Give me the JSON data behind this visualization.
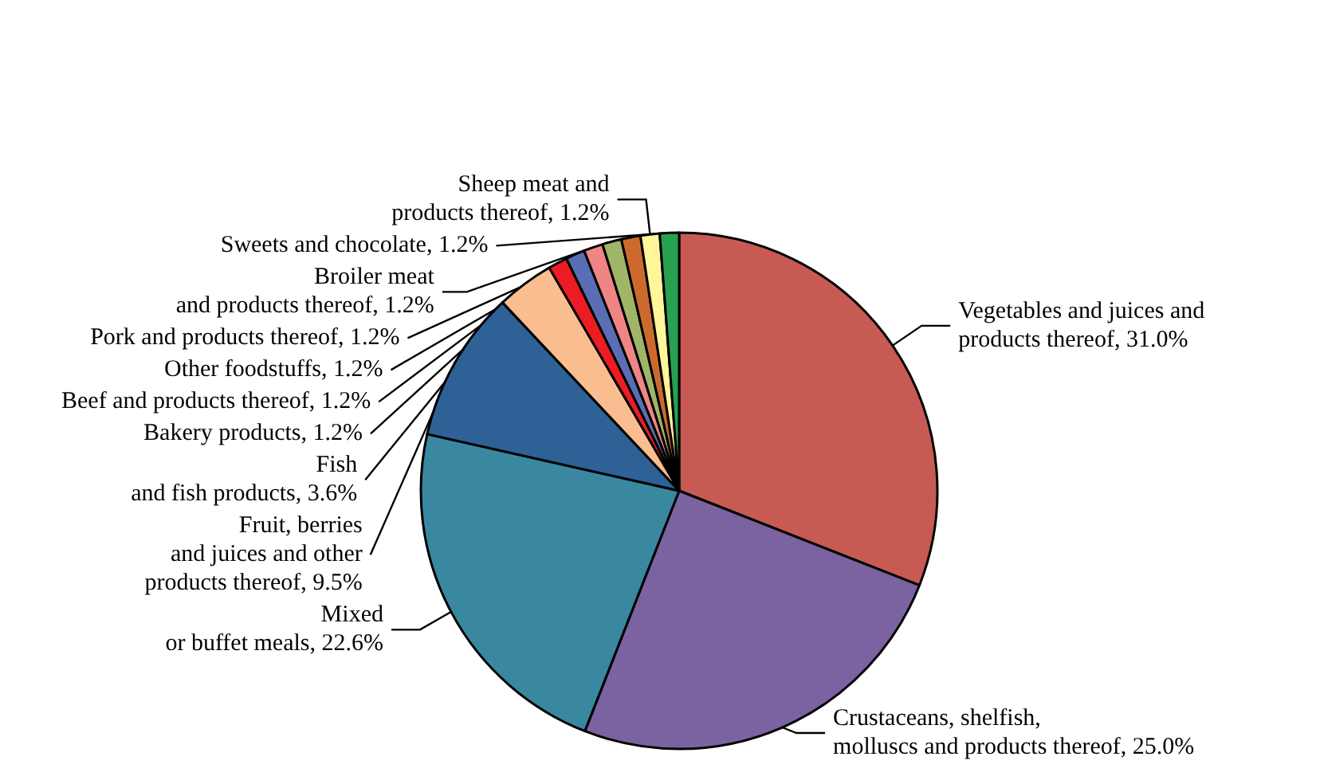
{
  "chart_data": {
    "type": "pie",
    "categories": [
      "Vegetables and juices and\nproducts thereof",
      "Crustaceans, shelfish,\nmolluscs and products thereof",
      "Mixed\nor buffet meals",
      "Fruit, berries\nand juices and other\nproducts thereof",
      "Fish\nand fish products",
      "Bakery products",
      "Beef and products thereof",
      "Broiler meat\nand products thereof",
      "Other foodstuffs",
      "Pork and products thereof",
      "Sheep meat and\nproducts thereof",
      "Sweets and chocolate"
    ],
    "values": [
      31.0,
      25.0,
      22.6,
      9.5,
      3.6,
      1.2,
      1.2,
      1.2,
      1.2,
      1.2,
      1.2,
      1.2
    ],
    "value_labels": [
      "31.0%",
      "25.0%",
      "22.6%",
      "9.5%",
      "3.6%",
      "1.2%",
      "1.2%",
      "1.2%",
      "1.2%",
      "1.2%",
      "1.2%",
      "1.2%"
    ],
    "colors": [
      "#c85a54",
      "#7b62a0",
      "#3a87a0",
      "#2e6196",
      "#f9bd8f",
      "#ec1c24",
      "#5b6db5",
      "#f08585",
      "#a0b568",
      "#cc6a2e",
      "#fff59a",
      "#28a050"
    ],
    "legend": false
  }
}
